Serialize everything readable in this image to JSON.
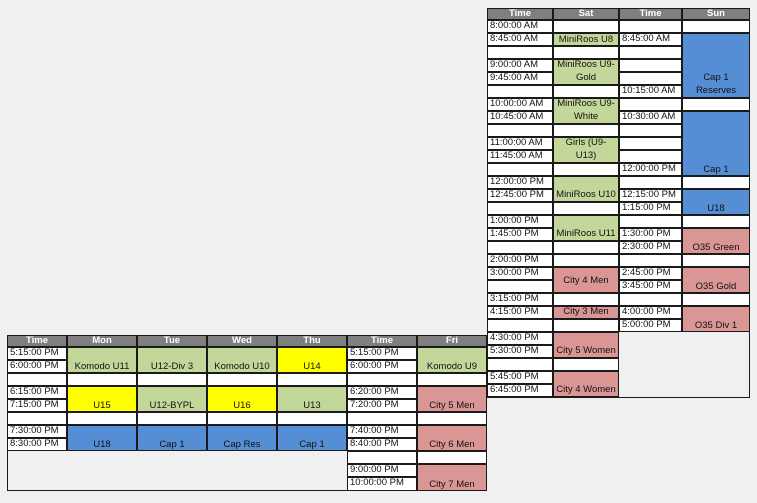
{
  "top": {
    "headers": [
      "Time",
      "Sat",
      "Time",
      "Sun"
    ],
    "sat_times": [
      "8:00:00 AM",
      "8:45:00 AM",
      "9:00:00 AM",
      "9:45:00 AM",
      "10:00:00 AM",
      "10:45:00 AM",
      "11:00:00 AM",
      "11:45:00 AM",
      "12:00:00 PM",
      "12:45:00 PM",
      "1:00:00 PM",
      "1:45:00 PM",
      "2:00:00 PM",
      "3:00:00 PM",
      "3:15:00 PM",
      "4:15:00 PM",
      "4:30:00 PM",
      "5:30:00 PM",
      "5:45:00 PM",
      "6:45:00 PM"
    ],
    "sat_events": [
      "MiniRoos U8",
      "MiniRoos U9-Gold",
      "MiniRoos U9-White",
      "Girls (U9-U13)",
      "MiniRoos U10",
      "MiniRoos U11",
      "City 4 Men",
      "City 3 Men",
      "City 5 Women",
      "City 4 Women"
    ],
    "sun_times": [
      "8:45:00 AM",
      "10:15:00 AM",
      "10:30:00 AM",
      "12:00:00 PM",
      "12:15:00 PM",
      "1:15:00 PM",
      "1:30:00 PM",
      "2:30:00 PM",
      "2:45:00 PM",
      "3:45:00 PM",
      "4:00:00 PM",
      "5:00:00 PM"
    ],
    "sun_events": [
      "Cap 1 Reserves",
      "Cap 1",
      "U18",
      "O35 Green",
      "O35 Gold",
      "O35 Div 1"
    ]
  },
  "bottom": {
    "headers": [
      "Time",
      "Mon",
      "Tue",
      "Wed",
      "Thu",
      "Time",
      "Fri"
    ],
    "weekday_times": [
      "5:15:00 PM",
      "6:00:00 PM",
      "6:15:00 PM",
      "7:15:00 PM",
      "7:30:00 PM",
      "8:30:00 PM"
    ],
    "mon": [
      "Komodo U11",
      "U15",
      "U18"
    ],
    "tue": [
      "U12-Div 3",
      "U12-BYPL",
      "Cap 1"
    ],
    "wed": [
      "Komodo U10",
      "U16",
      "Cap Res"
    ],
    "thu": [
      "U14",
      "U13",
      "Cap 1"
    ],
    "fri_times": [
      "5:15:00 PM",
      "6:00:00 PM",
      "6:20:00 PM",
      "7:20:00 PM",
      "7:40:00 PM",
      "8:40:00 PM",
      "9:00:00 PM",
      "10:00:00 PM"
    ],
    "fri": [
      "Komodo U9",
      "City 5 Men",
      "City 6 Men",
      "City 7 Men"
    ]
  }
}
